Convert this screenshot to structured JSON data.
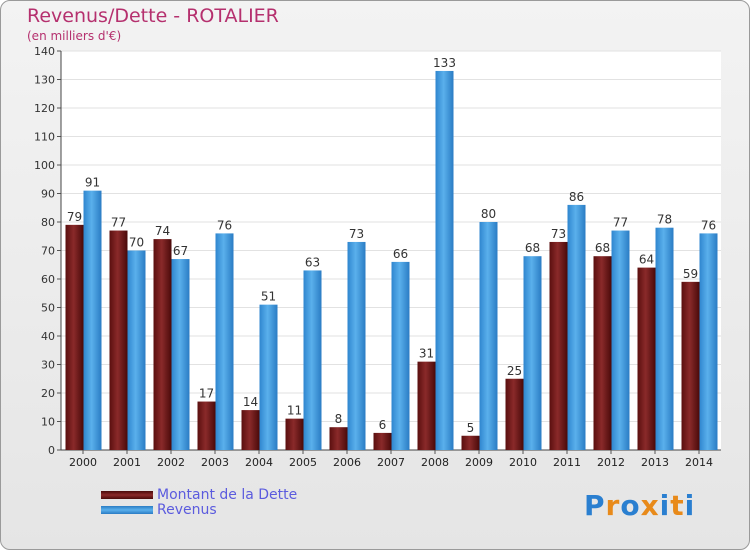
{
  "chart_data": {
    "type": "bar",
    "title": "Revenus/Dette - ROTALIER",
    "subtitle": "(en milliers d'€)",
    "categories": [
      "2000",
      "2001",
      "2002",
      "2003",
      "2004",
      "2005",
      "2006",
      "2007",
      "2008",
      "2009",
      "2010",
      "2011",
      "2012",
      "2013",
      "2014"
    ],
    "series": [
      {
        "name": "Montant de la Dette",
        "color": "#7a1a1a",
        "values": [
          79,
          77,
          74,
          17,
          14,
          11,
          8,
          6,
          31,
          5,
          25,
          73,
          68,
          64,
          59
        ]
      },
      {
        "name": "Revenus",
        "color": "#3a9be0",
        "values": [
          91,
          70,
          67,
          76,
          51,
          63,
          73,
          66,
          133,
          80,
          68,
          86,
          77,
          78,
          76
        ]
      }
    ],
    "ylim": [
      0,
      140
    ],
    "yticks": [
      0,
      10,
      20,
      30,
      40,
      50,
      60,
      70,
      80,
      90,
      100,
      110,
      120,
      130,
      140
    ],
    "xlabel": "",
    "ylabel": "",
    "grid": true,
    "legend": "bottom-left"
  },
  "logo": {
    "text": "Proxiti",
    "letters": [
      "P",
      "r",
      "o",
      "x",
      "i",
      "t",
      "i"
    ],
    "colors": [
      "#2a7fd0",
      "#e88a1a",
      "#2a7fd0",
      "#e88a1a",
      "#2a7fd0",
      "#e88a1a",
      "#2a7fd0"
    ]
  }
}
